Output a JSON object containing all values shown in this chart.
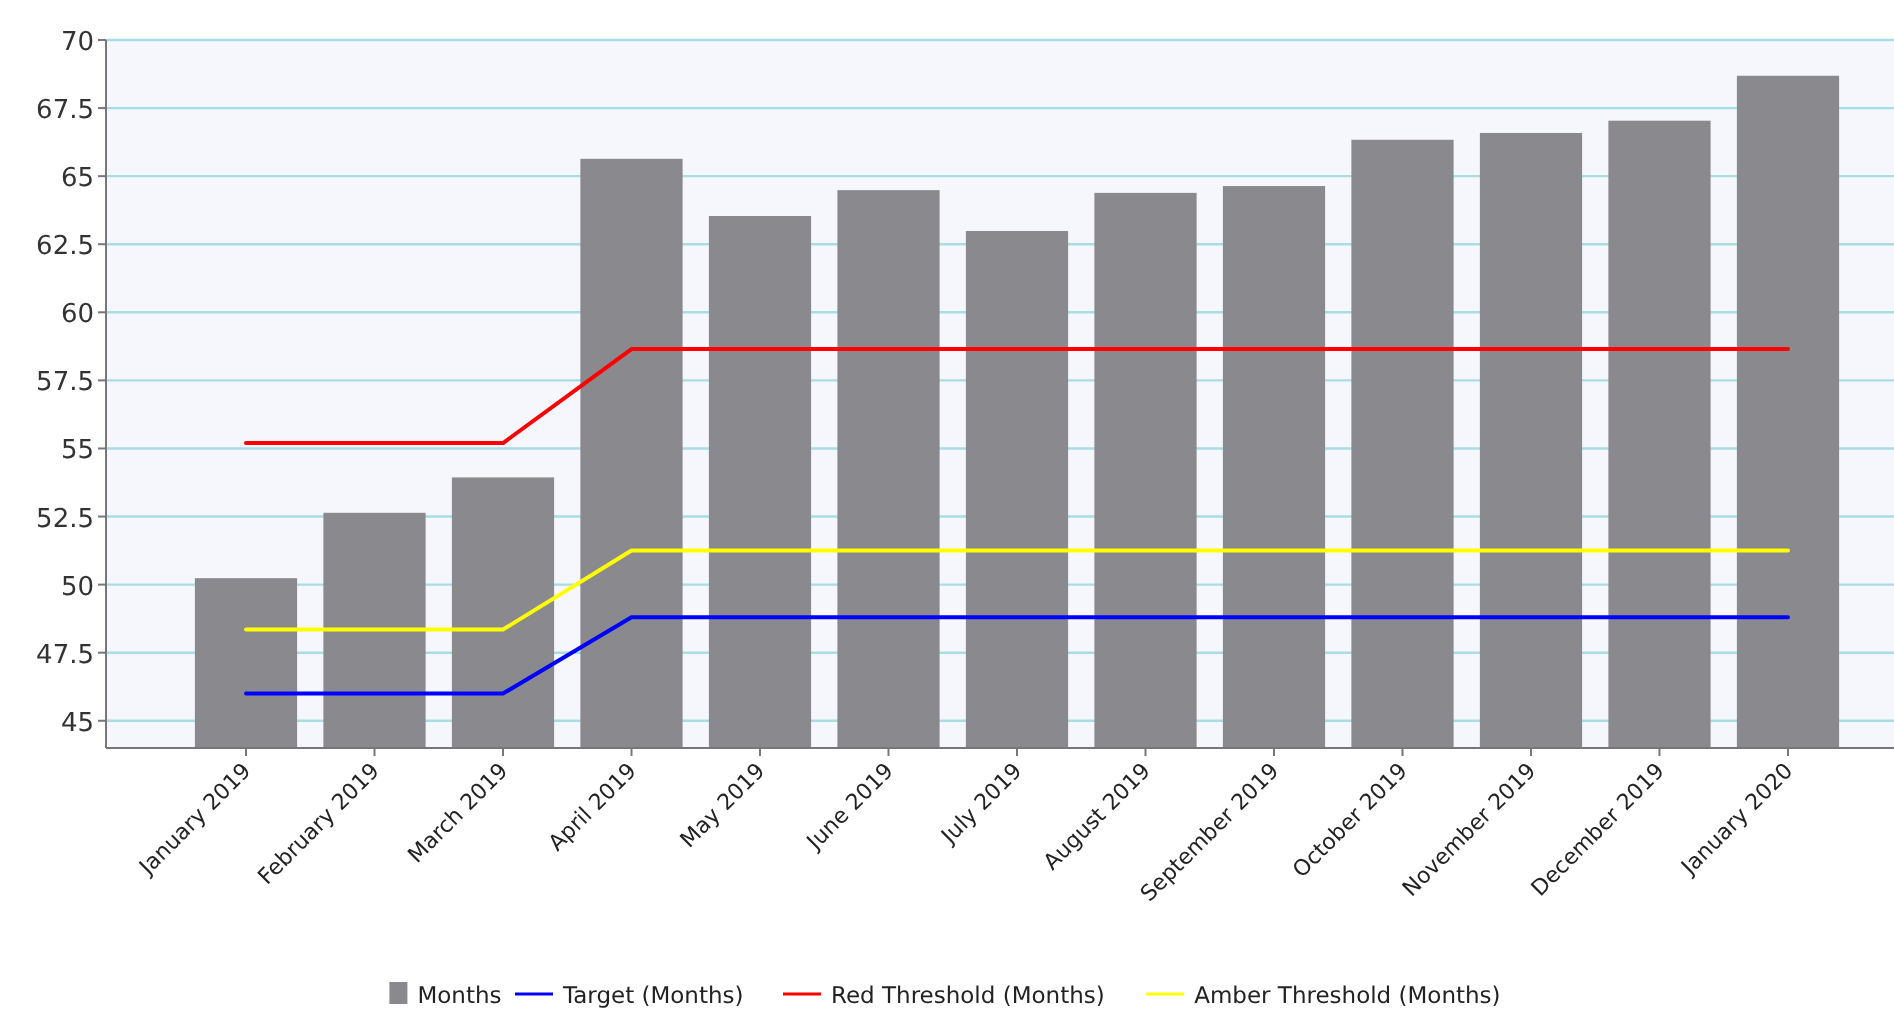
{
  "chart_data": {
    "type": "bar",
    "categories": [
      "January 2019",
      "February 2019",
      "March 2019",
      "April 2019",
      "May 2019",
      "June 2019",
      "July 2019",
      "August 2019",
      "September 2019",
      "October 2019",
      "November 2019",
      "December 2019",
      "January 2020"
    ],
    "series": [
      {
        "name": "Months",
        "color": "#8a898d",
        "values": [
          50.2,
          52.6,
          53.9,
          65.6,
          63.5,
          64.45,
          62.95,
          64.35,
          64.6,
          66.3,
          66.55,
          67.0,
          68.65
        ]
      },
      {
        "name": "Target (Months)",
        "type": "line",
        "color": "#0000ff",
        "values": [
          46.0,
          46.0,
          46.0,
          48.8,
          48.8,
          48.8,
          48.8,
          48.8,
          48.8,
          48.8,
          48.8,
          48.8,
          48.8
        ]
      },
      {
        "name": "Red Threshold (Months)",
        "type": "line",
        "color": "#ff0000",
        "values": [
          55.2,
          55.2,
          55.2,
          58.65,
          58.65,
          58.65,
          58.65,
          58.65,
          58.65,
          58.65,
          58.65,
          58.65,
          58.65
        ]
      },
      {
        "name": "Amber Threshold (Months)",
        "type": "line",
        "color": "#ffff00",
        "values": [
          48.35,
          48.35,
          48.35,
          51.25,
          51.25,
          51.25,
          51.25,
          51.25,
          51.25,
          51.25,
          51.25,
          51.25,
          51.25
        ]
      }
    ],
    "ylim": [
      44,
      70
    ],
    "yticks": [
      45,
      47.5,
      50,
      52.5,
      55,
      57.5,
      60,
      62.5,
      65,
      67.5,
      70
    ],
    "grid": "y",
    "legend": "bottom"
  }
}
